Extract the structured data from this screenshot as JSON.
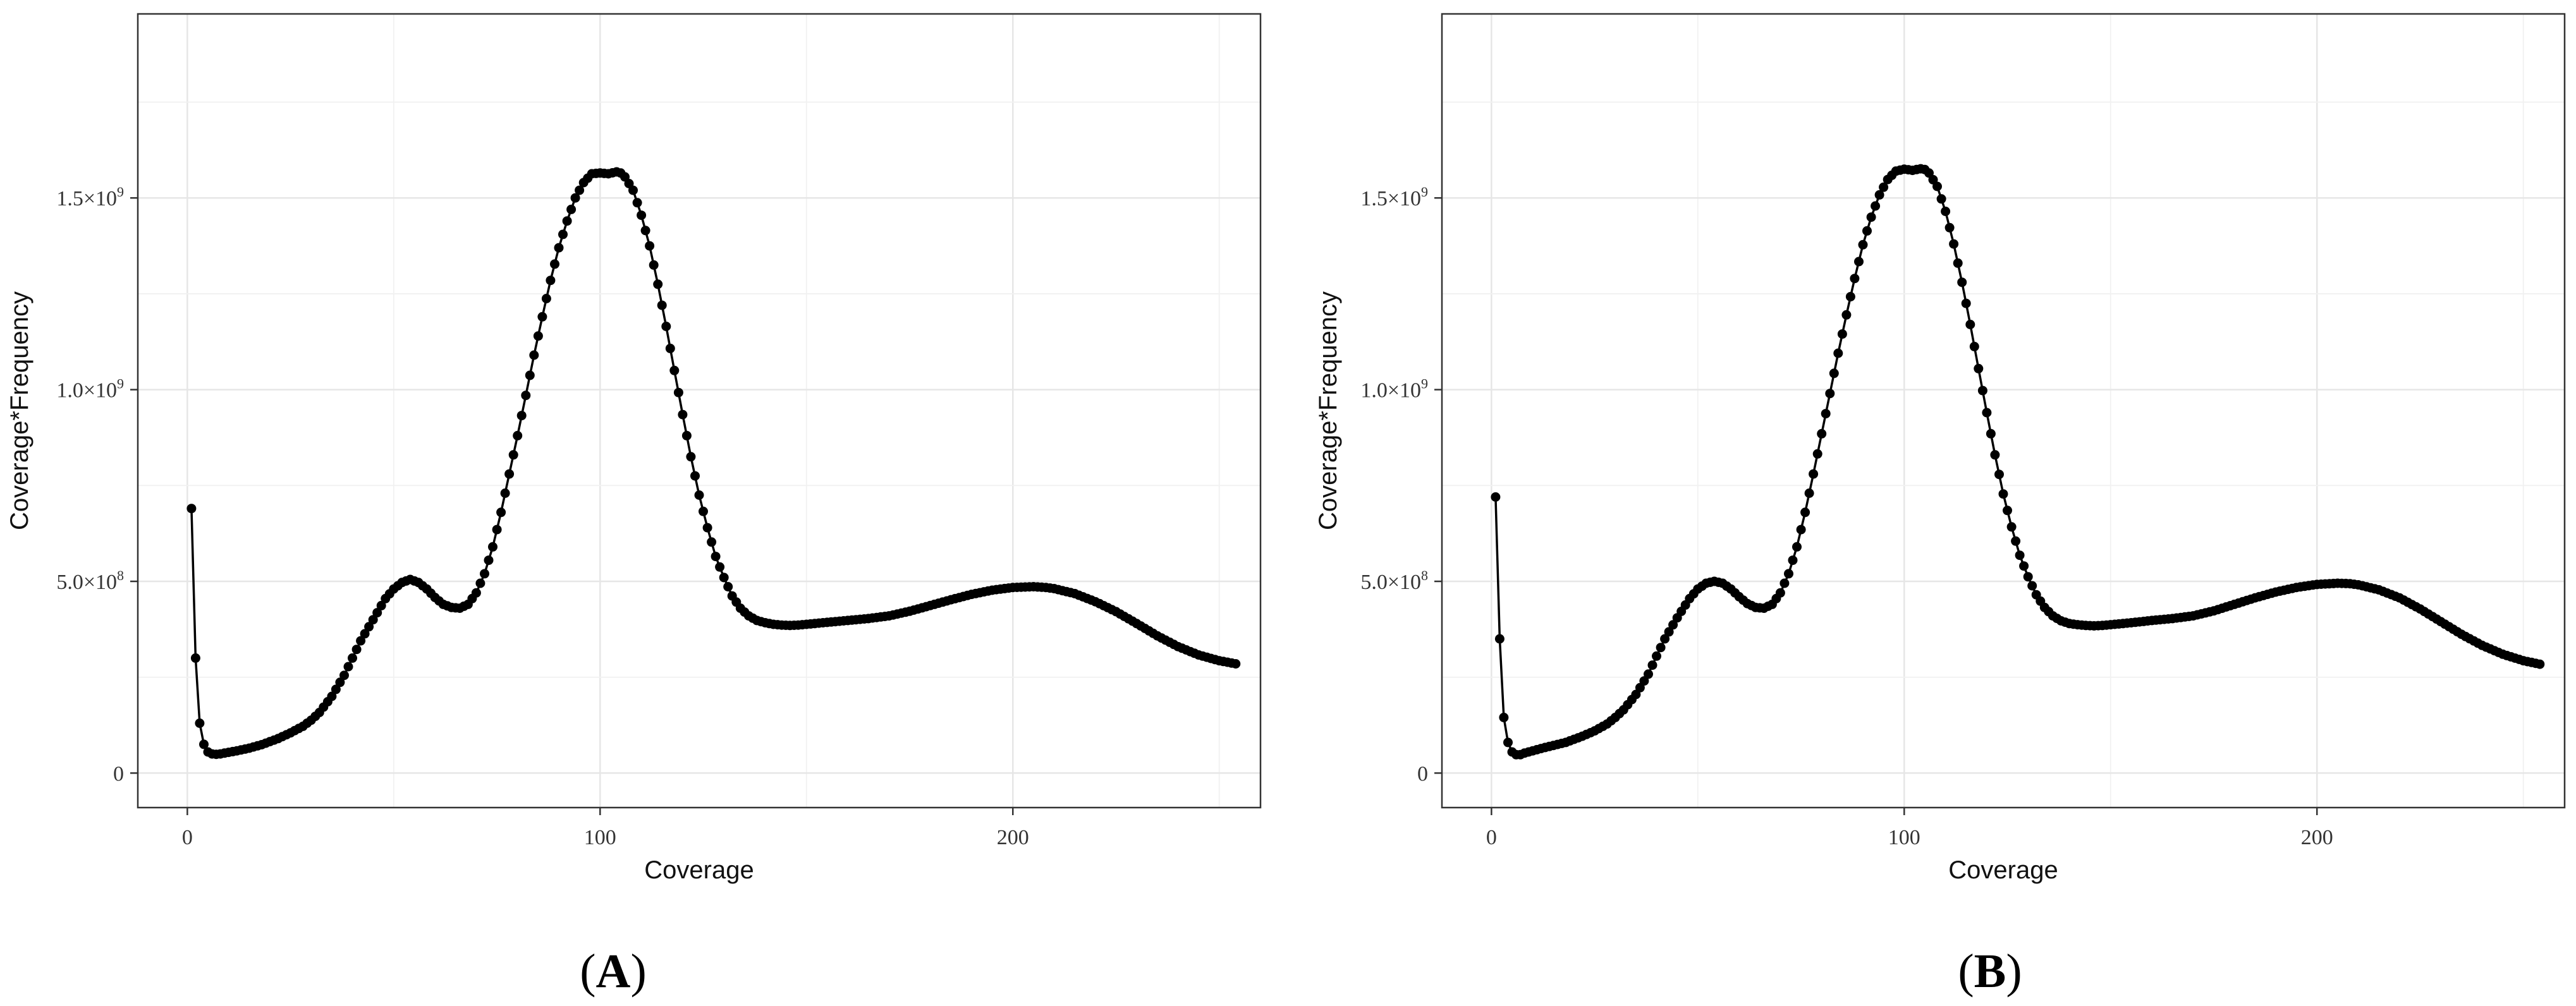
{
  "chart_data": [
    {
      "type": "line",
      "panel_label": "A",
      "xlabel": "Coverage",
      "ylabel": "Coverage*Frequency",
      "xlim": [
        -12,
        260
      ],
      "ylim": [
        -90000000,
        1980000000
      ],
      "xticks": [
        0,
        100,
        200
      ],
      "xtick_labels": [
        "0",
        "100",
        "200"
      ],
      "yticks": [
        0,
        500000000,
        1000000000,
        1500000000
      ],
      "ytick_labels": [
        {
          "base": "0",
          "exp": ""
        },
        {
          "base": "5.0×10",
          "exp": "8"
        },
        {
          "base": "1.0×10",
          "exp": "9"
        },
        {
          "base": "1.5×10",
          "exp": "9"
        }
      ],
      "grid": true,
      "markers": true,
      "series": [
        {
          "x": [
            1,
            2,
            3,
            4,
            5,
            6,
            7,
            8,
            10,
            12,
            15,
            18,
            20,
            22,
            25,
            28,
            30,
            32,
            35,
            38,
            40,
            42,
            45,
            48,
            50,
            52,
            54,
            56,
            58,
            60,
            62,
            64,
            66,
            68,
            70,
            72,
            74,
            76,
            78,
            80,
            82,
            84,
            86,
            88,
            90,
            92,
            94,
            96,
            98,
            100,
            102,
            104,
            105,
            106,
            108,
            110,
            112,
            114,
            116,
            118,
            120,
            122,
            124,
            126,
            128,
            130,
            132,
            134,
            136,
            138,
            140,
            142,
            144,
            146,
            148,
            150,
            155,
            160,
            165,
            170,
            175,
            180,
            185,
            190,
            195,
            200,
            205,
            208,
            210,
            215,
            220,
            225,
            230,
            235,
            240,
            245,
            250,
            254
          ],
          "y": [
            690000000,
            300000000,
            130000000,
            75000000,
            55000000,
            50000000,
            49000000,
            50000000,
            54000000,
            58000000,
            65000000,
            74000000,
            82000000,
            90000000,
            105000000,
            122000000,
            138000000,
            158000000,
            200000000,
            255000000,
            300000000,
            345000000,
            400000000,
            455000000,
            480000000,
            497000000,
            505000000,
            497000000,
            480000000,
            458000000,
            440000000,
            432000000,
            430000000,
            440000000,
            470000000,
            520000000,
            590000000,
            680000000,
            780000000,
            880000000,
            985000000,
            1090000000,
            1190000000,
            1285000000,
            1370000000,
            1440000000,
            1500000000,
            1540000000,
            1563000000,
            1565000000,
            1563000000,
            1568000000,
            1565000000,
            1555000000,
            1520000000,
            1455000000,
            1375000000,
            1275000000,
            1165000000,
            1050000000,
            935000000,
            825000000,
            725000000,
            640000000,
            565000000,
            510000000,
            462000000,
            430000000,
            410000000,
            398000000,
            392000000,
            388000000,
            386000000,
            385000000,
            386000000,
            388000000,
            393000000,
            398000000,
            403000000,
            410000000,
            422000000,
            437000000,
            452000000,
            466000000,
            477000000,
            484000000,
            486000000,
            484000000,
            481000000,
            468000000,
            447000000,
            421000000,
            390000000,
            358000000,
            330000000,
            308000000,
            293000000,
            285000000
          ]
        }
      ]
    },
    {
      "type": "line",
      "panel_label": "B",
      "xlabel": "Coverage",
      "ylabel": "Coverage*Frequency",
      "xlim": [
        -12,
        260
      ],
      "ylim": [
        -90000000,
        1980000000
      ],
      "xticks": [
        0,
        100,
        200
      ],
      "xtick_labels": [
        "0",
        "100",
        "200"
      ],
      "yticks": [
        0,
        500000000,
        1000000000,
        1500000000
      ],
      "ytick_labels": [
        {
          "base": "0",
          "exp": ""
        },
        {
          "base": "5.0×10",
          "exp": "8"
        },
        {
          "base": "1.0×10",
          "exp": "9"
        },
        {
          "base": "1.5×10",
          "exp": "9"
        }
      ],
      "grid": true,
      "markers": true,
      "series": [
        {
          "x": [
            1,
            2,
            3,
            4,
            5,
            6,
            7,
            8,
            10,
            12,
            15,
            18,
            20,
            22,
            25,
            28,
            30,
            32,
            35,
            38,
            40,
            42,
            45,
            48,
            50,
            52,
            54,
            56,
            58,
            60,
            62,
            64,
            66,
            68,
            70,
            72,
            74,
            76,
            78,
            80,
            82,
            84,
            86,
            88,
            90,
            92,
            94,
            96,
            98,
            100,
            102,
            104,
            105,
            106,
            108,
            110,
            112,
            114,
            116,
            118,
            120,
            122,
            124,
            126,
            128,
            130,
            132,
            134,
            136,
            138,
            140,
            142,
            144,
            146,
            148,
            150,
            155,
            160,
            165,
            170,
            175,
            180,
            185,
            190,
            195,
            200,
            205,
            208,
            210,
            215,
            220,
            225,
            230,
            235,
            240,
            245,
            250,
            254
          ],
          "y": [
            720000000,
            350000000,
            145000000,
            80000000,
            55000000,
            48000000,
            48000000,
            52000000,
            58000000,
            64000000,
            72000000,
            80000000,
            88000000,
            96000000,
            110000000,
            128000000,
            145000000,
            165000000,
            205000000,
            258000000,
            305000000,
            350000000,
            405000000,
            455000000,
            480000000,
            495000000,
            500000000,
            495000000,
            480000000,
            460000000,
            442000000,
            432000000,
            430000000,
            440000000,
            470000000,
            520000000,
            590000000,
            680000000,
            780000000,
            885000000,
            990000000,
            1095000000,
            1195000000,
            1290000000,
            1378000000,
            1450000000,
            1508000000,
            1548000000,
            1570000000,
            1575000000,
            1572000000,
            1576000000,
            1574000000,
            1565000000,
            1530000000,
            1465000000,
            1380000000,
            1280000000,
            1170000000,
            1055000000,
            940000000,
            830000000,
            728000000,
            642000000,
            568000000,
            512000000,
            465000000,
            432000000,
            410000000,
            397000000,
            390000000,
            387000000,
            385000000,
            384000000,
            385000000,
            387000000,
            392000000,
            398000000,
            403000000,
            410000000,
            423000000,
            440000000,
            457000000,
            472000000,
            484000000,
            492000000,
            495000000,
            494000000,
            491000000,
            478000000,
            457000000,
            428000000,
            395000000,
            362000000,
            333000000,
            310000000,
            293000000,
            284000000
          ]
        }
      ]
    }
  ]
}
